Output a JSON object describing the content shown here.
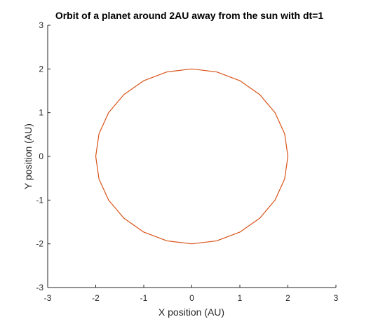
{
  "chart_data": {
    "type": "line",
    "title": "Orbit of a planet around 2AU away from the sun with dt=1",
    "xlabel": "X position (AU)",
    "ylabel": "Y position (AU)",
    "xlim": [
      -3,
      3
    ],
    "ylim": [
      -3,
      3
    ],
    "xticks": [
      -3,
      -2,
      -1,
      0,
      1,
      2,
      3
    ],
    "yticks": [
      -3,
      -2,
      -1,
      0,
      1,
      2,
      3
    ],
    "xtick_labels": [
      "-3",
      "-2",
      "-1",
      "0",
      "1",
      "2",
      "3"
    ],
    "ytick_labels": [
      "-3",
      "-2",
      "-1",
      "0",
      "1",
      "2",
      "3"
    ],
    "grid": false,
    "legend": "none",
    "series": [
      {
        "color": "#d95319",
        "center": [
          0,
          0
        ],
        "radius": 2.0,
        "x": [
          2.0,
          1.932,
          1.732,
          1.414,
          1.0,
          0.518,
          0.0,
          -0.518,
          -1.0,
          -1.414,
          -1.732,
          -1.932,
          -2.0,
          -1.932,
          -1.732,
          -1.414,
          -1.0,
          -0.518,
          0.0,
          0.518,
          1.0,
          1.414,
          1.732,
          1.932,
          2.0
        ],
        "y": [
          0.0,
          0.518,
          1.0,
          1.414,
          1.732,
          1.932,
          2.0,
          1.932,
          1.732,
          1.414,
          1.0,
          0.518,
          0.0,
          -0.518,
          -1.0,
          -1.414,
          -1.732,
          -1.932,
          -2.0,
          -1.932,
          -1.732,
          -1.414,
          -1.0,
          -0.518,
          0.0
        ]
      }
    ]
  }
}
